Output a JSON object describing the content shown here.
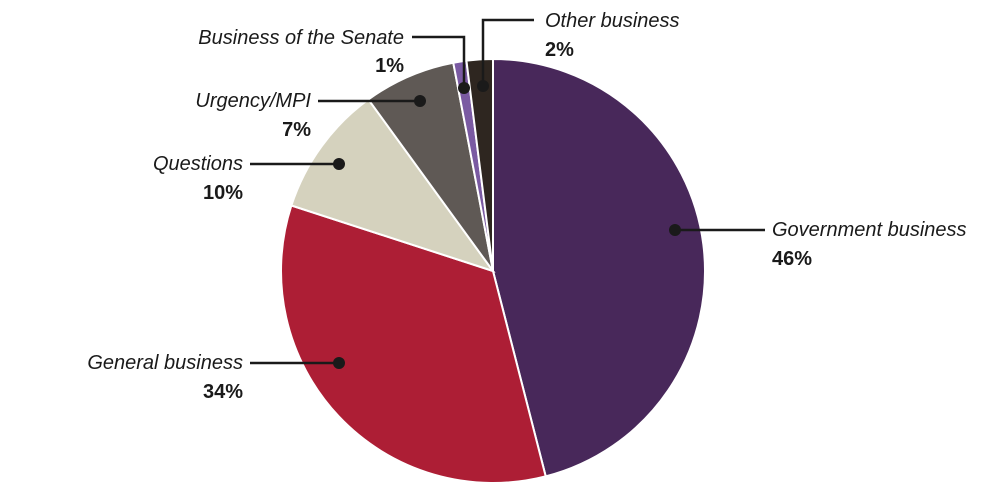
{
  "chart_data": {
    "type": "pie",
    "slices": [
      {
        "name": "Government business",
        "value": 46,
        "value_label": "46%",
        "color": "#48285a"
      },
      {
        "name": "General business",
        "value": 34,
        "value_label": "34%",
        "color": "#ad1e35"
      },
      {
        "name": "Questions",
        "value": 10,
        "value_label": "10%",
        "color": "#d5d2be"
      },
      {
        "name": "Urgency/MPI",
        "value": 7,
        "value_label": "7%",
        "color": "#5f5955"
      },
      {
        "name": "Business of the Senate",
        "value": 1,
        "value_label": "1%",
        "color": "#7a5aa2"
      },
      {
        "name": "Other business",
        "value": 2,
        "value_label": "2%",
        "color": "#2e2620"
      }
    ],
    "start_angle_deg": 0,
    "direction": "clockwise",
    "legend": "none"
  }
}
